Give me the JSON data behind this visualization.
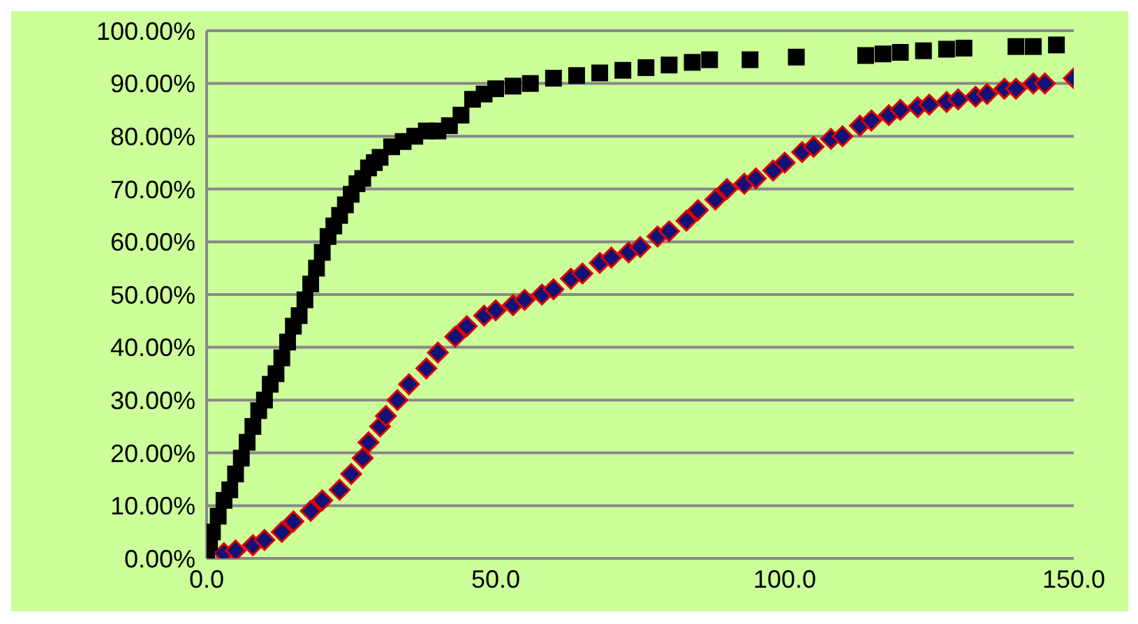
{
  "chart_data": {
    "type": "scatter",
    "grid": "y",
    "legend": false,
    "xlim": [
      0,
      150
    ],
    "xticks": [
      {
        "value": 0,
        "label": "0.0"
      },
      {
        "value": 50,
        "label": "50.0"
      },
      {
        "value": 100,
        "label": "100.0"
      },
      {
        "value": 150,
        "label": "150.0"
      }
    ],
    "ylim": [
      0,
      100
    ],
    "yticks": [
      {
        "value": 0,
        "label": "0.00%"
      },
      {
        "value": 10,
        "label": "10.00%"
      },
      {
        "value": 20,
        "label": "20.00%"
      },
      {
        "value": 30,
        "label": "30.00%"
      },
      {
        "value": 40,
        "label": "40.00%"
      },
      {
        "value": 50,
        "label": "50.00%"
      },
      {
        "value": 60,
        "label": "60.00%"
      },
      {
        "value": 70,
        "label": "70.00%"
      },
      {
        "value": 80,
        "label": "80.00%"
      },
      {
        "value": 90,
        "label": "90.00%"
      },
      {
        "value": 100,
        "label": "100.00%"
      }
    ],
    "series": [
      {
        "color": "#111177",
        "marker": "diamond",
        "x": [
          3,
          5,
          8,
          10,
          13,
          15,
          18,
          20,
          23,
          25,
          27,
          28,
          30,
          31,
          33,
          35,
          38,
          40,
          43,
          45,
          48,
          50,
          53,
          55,
          58,
          60,
          63,
          65,
          68,
          70,
          73,
          75,
          78,
          80,
          83,
          85,
          88,
          90,
          93,
          95,
          98,
          100,
          103,
          105,
          108,
          110,
          113,
          115,
          118,
          120,
          123,
          125,
          128,
          130,
          133,
          135,
          138,
          140,
          143,
          145,
          150
        ],
        "values": [
          1,
          1.5,
          2.5,
          3.5,
          5,
          7,
          9,
          11,
          13,
          16,
          19,
          22,
          25,
          27,
          30,
          33,
          36,
          39,
          42,
          44,
          46,
          47,
          48,
          49,
          50,
          51,
          53,
          54,
          56,
          57,
          58,
          59,
          61,
          62,
          64,
          66,
          68,
          70,
          71,
          72,
          73.5,
          75,
          77,
          78,
          79.5,
          80,
          82,
          83,
          84,
          85,
          85.5,
          86,
          86.5,
          87,
          87.5,
          88,
          89,
          89,
          90,
          90,
          91
        ]
      },
      {
        "color": "#000000",
        "marker": "square",
        "x": [
          0,
          0.5,
          1,
          2,
          3,
          4,
          5,
          6,
          7,
          8,
          9,
          10,
          11,
          12,
          13,
          14,
          15,
          16,
          17,
          18,
          19,
          20,
          21,
          22,
          23,
          24,
          25,
          26,
          27,
          28,
          29,
          30,
          32,
          34,
          36,
          38,
          40,
          42,
          44,
          46,
          48,
          50,
          53,
          56,
          60,
          64,
          68,
          72,
          76,
          80,
          84,
          87,
          94,
          102,
          114,
          117,
          120,
          124,
          128,
          131,
          140,
          143,
          147
        ],
        "values": [
          0,
          3,
          5,
          8,
          11,
          13,
          16,
          19,
          22,
          25,
          28,
          30,
          33,
          35,
          38,
          41,
          44,
          46,
          49,
          52,
          55,
          58,
          61,
          63,
          65,
          67,
          69,
          71,
          72,
          74,
          75,
          76,
          78,
          79,
          80,
          81,
          81,
          82,
          84,
          87,
          88,
          89,
          89.5,
          90,
          91,
          91.5,
          92,
          92.5,
          93,
          93.5,
          94,
          94.5,
          94.5,
          95,
          95.3,
          95.6,
          95.9,
          96.2,
          96.5,
          96.7,
          97,
          97,
          97.3
        ]
      }
    ]
  }
}
